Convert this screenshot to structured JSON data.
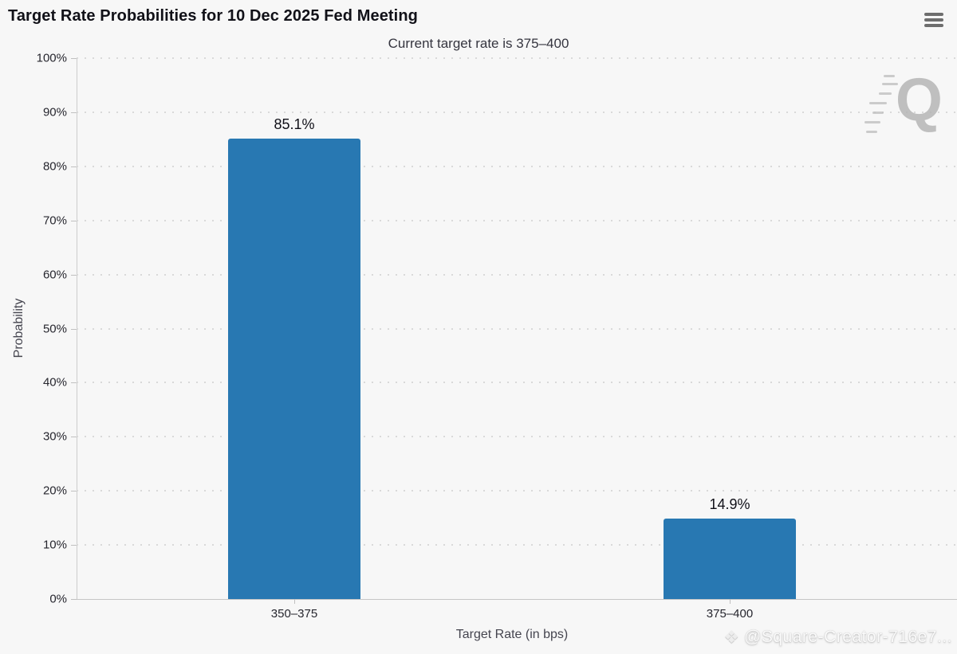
{
  "page": {
    "background": "#f7f7f7"
  },
  "header": {
    "title": "Target Rate Probabilities for 10 Dec 2025 Fed Meeting"
  },
  "menu": {
    "icon": "hamburger-menu-icon"
  },
  "chart_data": {
    "type": "bar",
    "title": "Target Rate Probabilities for 10 Dec 2025 Fed Meeting",
    "subtitle": "Current target rate is 375–400",
    "categories": [
      "350–375",
      "375–400"
    ],
    "values": [
      85.1,
      14.9
    ],
    "value_labels": [
      "85.1%",
      "14.9%"
    ],
    "xlabel": "Target Rate (in bps)",
    "ylabel": "Probability",
    "ylim": [
      0,
      100
    ],
    "ytick_step": 10,
    "ytick_labels": [
      "0%",
      "10%",
      "20%",
      "30%",
      "40%",
      "50%",
      "60%",
      "70%",
      "80%",
      "90%",
      "100%"
    ],
    "grid": "dotted-horizontal",
    "legend": "none",
    "bar_color": "#2878b2"
  },
  "watermarks": {
    "logo_letter": "Q",
    "creator_icon": "binance-diamond-icon",
    "creator_handle": "@Square-Creator-716e7..."
  }
}
